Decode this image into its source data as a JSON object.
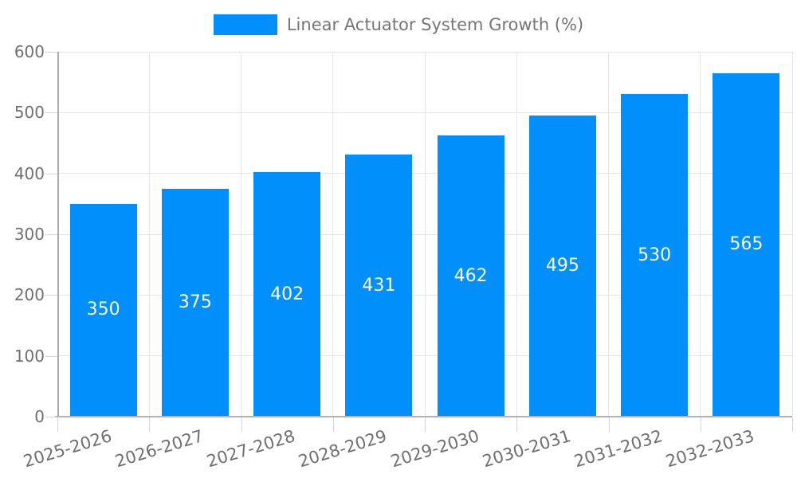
{
  "colors": {
    "bar": "#008FFB",
    "grid": "#e5e5e5",
    "axis_line": "#b3b3b3",
    "tick": "#d4d4d4",
    "axis_label": "#6f6f6f",
    "legend_label": "#757575",
    "data_label": "#ffffff",
    "background": "#ffffff"
  },
  "chart_data": {
    "type": "bar",
    "title": "",
    "xlabel": "",
    "ylabel": "",
    "legend_position": "top",
    "series": [
      {
        "name": "Linear Actuator System Growth (%)",
        "values": [
          350,
          375,
          402,
          431,
          462,
          495,
          530,
          565
        ]
      }
    ],
    "categories": [
      "2025-2026",
      "2026-2027",
      "2027-2028",
      "2028-2029",
      "2029-2030",
      "2030-2031",
      "2031-2032",
      "2032-2033"
    ],
    "values": [
      350,
      375,
      402,
      431,
      462,
      495,
      530,
      565
    ],
    "data_labels": [
      "350",
      "375",
      "402",
      "431",
      "462",
      "495",
      "530",
      "565"
    ],
    "ylim": [
      0,
      600
    ],
    "yticks": [
      0,
      100,
      200,
      300,
      400,
      500,
      600
    ],
    "grid": true
  }
}
